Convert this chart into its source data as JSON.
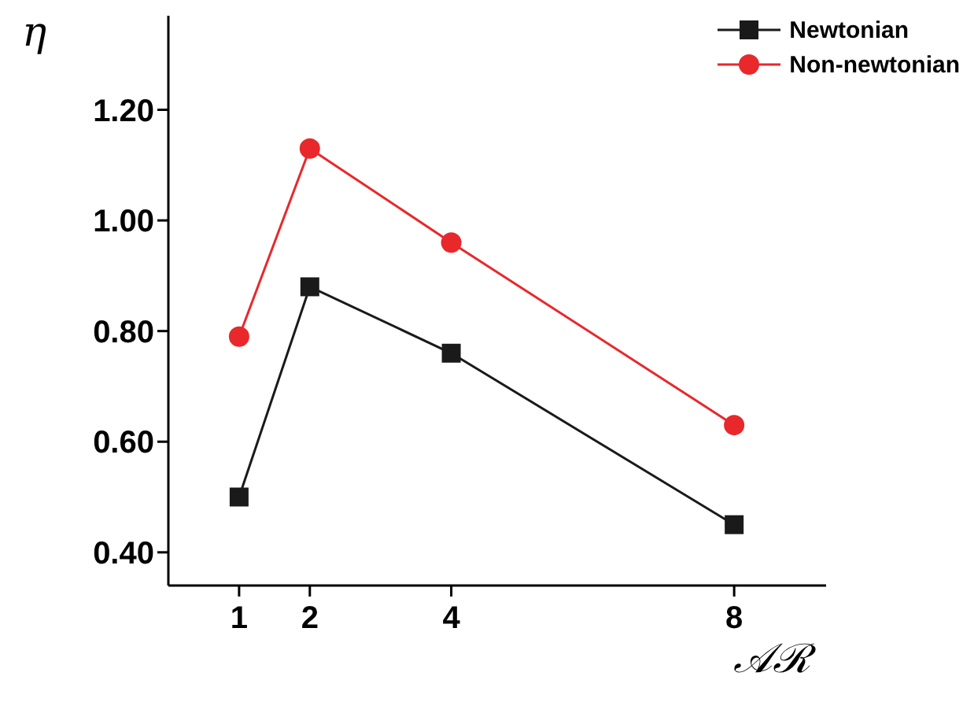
{
  "chart_data": {
    "type": "line",
    "xlabel": "𝒜ℛ",
    "ylabel": "η",
    "x": [
      1,
      2,
      4,
      8
    ],
    "series": [
      {
        "name": "Newtonian",
        "color": "#1a1a1a",
        "marker": "square",
        "values": [
          0.5,
          0.88,
          0.76,
          0.45
        ]
      },
      {
        "name": "Non-newtonian",
        "color": "#e8282b",
        "marker": "circle",
        "values": [
          0.79,
          1.13,
          0.96,
          0.63
        ]
      }
    ],
    "xlim": [
      0,
      9.3
    ],
    "xticks": [
      1,
      2,
      4,
      8
    ],
    "ylim": [
      0.34,
      1.37
    ],
    "yticks": [
      {
        "value": 0.4,
        "label": "0.40"
      },
      {
        "value": 0.6,
        "label": "0.60"
      },
      {
        "value": 0.8,
        "label": "0.80"
      },
      {
        "value": 1.0,
        "label": "1.00"
      },
      {
        "value": 1.2,
        "label": "1.20"
      }
    ],
    "grid": false,
    "legend": "top right",
    "line_style": "solid"
  }
}
